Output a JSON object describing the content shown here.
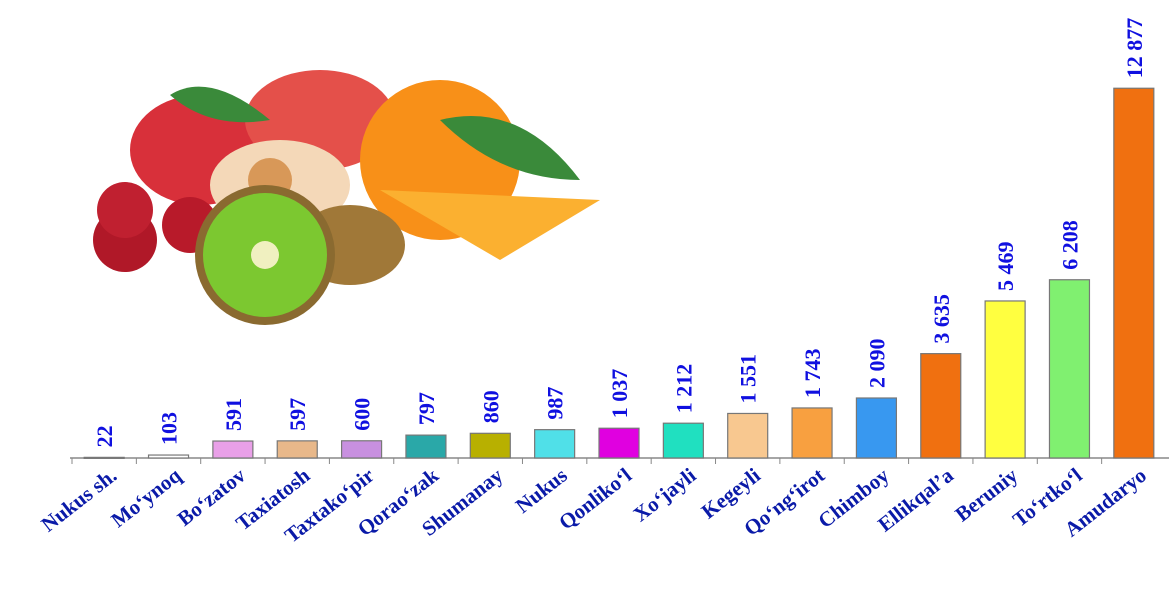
{
  "chart_data": {
    "type": "bar",
    "categories": [
      "Nukus sh.",
      "Mo‘ynoq",
      "Bo‘zatov",
      "Taxiatosh",
      "Taxtako‘pir",
      "Qorao‘zak",
      "Shumanay",
      "Nukus",
      "Qonliko‘l",
      "Xo‘jayli",
      "Kegeyli",
      "Qo‘ng‘irot",
      "Chimboy",
      "Ellikqal’a",
      "Beruniy",
      "To‘rtko‘l",
      "Amudaryo"
    ],
    "values": [
      22,
      103,
      591,
      597,
      600,
      797,
      860,
      987,
      1037,
      1212,
      1551,
      1743,
      2090,
      3635,
      5469,
      6208,
      12877
    ],
    "value_labels": [
      "22",
      "103",
      "591",
      "597",
      "600",
      "797",
      "860",
      "987",
      "1 037",
      "1 212",
      "1 551",
      "1 743",
      "2 090",
      "3 635",
      "5 469",
      "6 208",
      "12 877"
    ],
    "colors": [
      "#ffffff",
      "#ffffff",
      "#e9a0e8",
      "#e8b88a",
      "#c890e0",
      "#2aa8a8",
      "#b8b000",
      "#50e0e8",
      "#e000e0",
      "#20e0c0",
      "#f8c890",
      "#f8a040",
      "#3898f0",
      "#f07010",
      "#ffff40",
      "#80f070",
      "#f07010"
    ],
    "ylim": [
      0,
      14000
    ]
  }
}
